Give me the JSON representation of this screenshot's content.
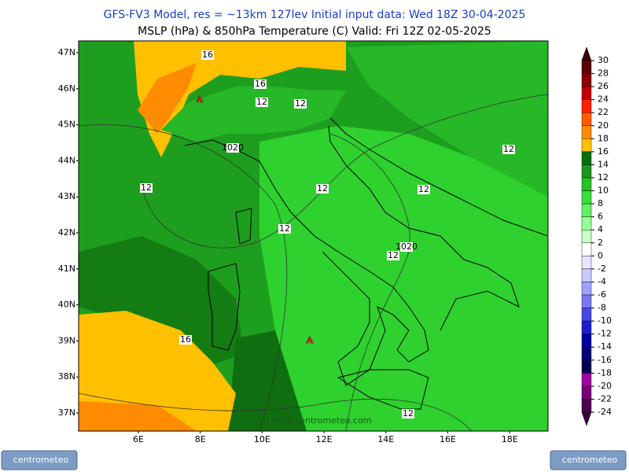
{
  "header": {
    "line1": "GFS-FV3 Model, res = ~13km 127lev    Initial input data: Wed 18Z 30-04-2025",
    "line2": "MSLP (hPa) & 850hPa Temperature (C)  Valid: Fri 12Z 02-05-2025"
  },
  "map": {
    "lat_labels": [
      "47N",
      "46N",
      "45N",
      "44N",
      "43N",
      "42N",
      "41N",
      "40N",
      "39N",
      "38N",
      "37N"
    ],
    "lon_labels": [
      "6E",
      "8E",
      "10E",
      "12E",
      "14E",
      "16E",
      "18E"
    ],
    "contour_labels": [
      "16",
      "16",
      "12",
      "12",
      "12",
      "12",
      "12",
      "12",
      "12",
      "12",
      "1020",
      "1020",
      "16",
      "12"
    ],
    "pressure_centers": [
      "A",
      "A"
    ],
    "watermark": "(c) www.centrometeo.com"
  },
  "colorbar": {
    "ticks": [
      30,
      28,
      26,
      24,
      22,
      20,
      18,
      16,
      14,
      12,
      10,
      8,
      6,
      4,
      2,
      0,
      -2,
      -4,
      -6,
      -8,
      -10,
      -12,
      -14,
      -16,
      -18,
      -20,
      -22,
      -24
    ],
    "colors": [
      "#5a0000",
      "#8b0000",
      "#c00000",
      "#ff2000",
      "#ff5a00",
      "#ff8c00",
      "#ffc000",
      "#0a6e0a",
      "#1e9620",
      "#28be28",
      "#3cdc3c",
      "#64f064",
      "#96ff96",
      "#c8ffc8",
      "#ffffff",
      "#e6e6ff",
      "#c8c8ff",
      "#a0a0ff",
      "#7878f0",
      "#4646e6",
      "#1e1ec8",
      "#0000a0",
      "#000078",
      "#000050",
      "#a000a0",
      "#780078",
      "#500050"
    ]
  },
  "logos": [
    "centrometeo",
    "centrometeo"
  ]
}
